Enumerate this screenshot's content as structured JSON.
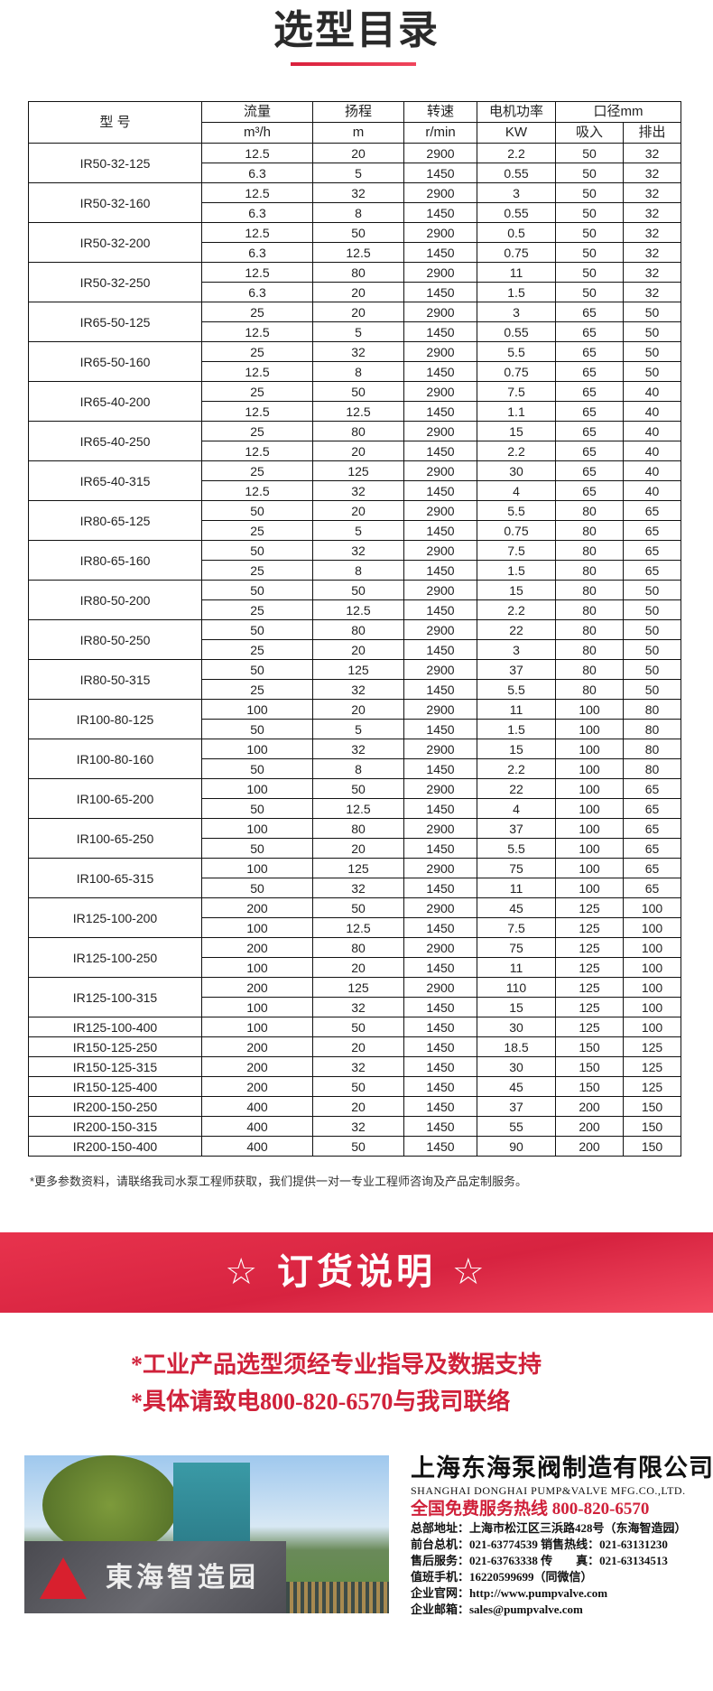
{
  "page": {
    "title": "选型目录",
    "accent_color": "#d9203c"
  },
  "table": {
    "header_model": "型 号",
    "headers_top": [
      "流量",
      "扬程",
      "转速",
      "电机功率",
      "口径mm"
    ],
    "headers_units": [
      "m³/h",
      "m",
      "r/min",
      "KW",
      "吸入",
      "排出"
    ],
    "models": [
      {
        "model": "IR50-32-125",
        "rows": [
          [
            "12.5",
            "20",
            "2900",
            "2.2",
            "50",
            "32"
          ],
          [
            "6.3",
            "5",
            "1450",
            "0.55",
            "50",
            "32"
          ]
        ]
      },
      {
        "model": "IR50-32-160",
        "rows": [
          [
            "12.5",
            "32",
            "2900",
            "3",
            "50",
            "32"
          ],
          [
            "6.3",
            "8",
            "1450",
            "0.55",
            "50",
            "32"
          ]
        ]
      },
      {
        "model": "IR50-32-200",
        "rows": [
          [
            "12.5",
            "50",
            "2900",
            "0.5",
            "50",
            "32"
          ],
          [
            "6.3",
            "12.5",
            "1450",
            "0.75",
            "50",
            "32"
          ]
        ]
      },
      {
        "model": "IR50-32-250",
        "rows": [
          [
            "12.5",
            "80",
            "2900",
            "11",
            "50",
            "32"
          ],
          [
            "6.3",
            "20",
            "1450",
            "1.5",
            "50",
            "32"
          ]
        ]
      },
      {
        "model": "IR65-50-125",
        "rows": [
          [
            "25",
            "20",
            "2900",
            "3",
            "65",
            "50"
          ],
          [
            "12.5",
            "5",
            "1450",
            "0.55",
            "65",
            "50"
          ]
        ]
      },
      {
        "model": "IR65-50-160",
        "rows": [
          [
            "25",
            "32",
            "2900",
            "5.5",
            "65",
            "50"
          ],
          [
            "12.5",
            "8",
            "1450",
            "0.75",
            "65",
            "50"
          ]
        ]
      },
      {
        "model": "IR65-40-200",
        "rows": [
          [
            "25",
            "50",
            "2900",
            "7.5",
            "65",
            "40"
          ],
          [
            "12.5",
            "12.5",
            "1450",
            "1.1",
            "65",
            "40"
          ]
        ]
      },
      {
        "model": "IR65-40-250",
        "rows": [
          [
            "25",
            "80",
            "2900",
            "15",
            "65",
            "40"
          ],
          [
            "12.5",
            "20",
            "1450",
            "2.2",
            "65",
            "40"
          ]
        ]
      },
      {
        "model": "IR65-40-315",
        "rows": [
          [
            "25",
            "125",
            "2900",
            "30",
            "65",
            "40"
          ],
          [
            "12.5",
            "32",
            "1450",
            "4",
            "65",
            "40"
          ]
        ]
      },
      {
        "model": "IR80-65-125",
        "rows": [
          [
            "50",
            "20",
            "2900",
            "5.5",
            "80",
            "65"
          ],
          [
            "25",
            "5",
            "1450",
            "0.75",
            "80",
            "65"
          ]
        ]
      },
      {
        "model": "IR80-65-160",
        "rows": [
          [
            "50",
            "32",
            "2900",
            "7.5",
            "80",
            "65"
          ],
          [
            "25",
            "8",
            "1450",
            "1.5",
            "80",
            "65"
          ]
        ]
      },
      {
        "model": "IR80-50-200",
        "rows": [
          [
            "50",
            "50",
            "2900",
            "15",
            "80",
            "50"
          ],
          [
            "25",
            "12.5",
            "1450",
            "2.2",
            "80",
            "50"
          ]
        ]
      },
      {
        "model": "IR80-50-250",
        "rows": [
          [
            "50",
            "80",
            "2900",
            "22",
            "80",
            "50"
          ],
          [
            "25",
            "20",
            "1450",
            "3",
            "80",
            "50"
          ]
        ]
      },
      {
        "model": "IR80-50-315",
        "rows": [
          [
            "50",
            "125",
            "2900",
            "37",
            "80",
            "50"
          ],
          [
            "25",
            "32",
            "1450",
            "5.5",
            "80",
            "50"
          ]
        ]
      },
      {
        "model": "IR100-80-125",
        "rows": [
          [
            "100",
            "20",
            "2900",
            "11",
            "100",
            "80"
          ],
          [
            "50",
            "5",
            "1450",
            "1.5",
            "100",
            "80"
          ]
        ]
      },
      {
        "model": "IR100-80-160",
        "rows": [
          [
            "100",
            "32",
            "2900",
            "15",
            "100",
            "80"
          ],
          [
            "50",
            "8",
            "1450",
            "2.2",
            "100",
            "80"
          ]
        ]
      },
      {
        "model": "IR100-65-200",
        "rows": [
          [
            "100",
            "50",
            "2900",
            "22",
            "100",
            "65"
          ],
          [
            "50",
            "12.5",
            "1450",
            "4",
            "100",
            "65"
          ]
        ]
      },
      {
        "model": "IR100-65-250",
        "rows": [
          [
            "100",
            "80",
            "2900",
            "37",
            "100",
            "65"
          ],
          [
            "50",
            "20",
            "1450",
            "5.5",
            "100",
            "65"
          ]
        ]
      },
      {
        "model": "IR100-65-315",
        "rows": [
          [
            "100",
            "125",
            "2900",
            "75",
            "100",
            "65"
          ],
          [
            "50",
            "32",
            "1450",
            "11",
            "100",
            "65"
          ]
        ]
      },
      {
        "model": "IR125-100-200",
        "rows": [
          [
            "200",
            "50",
            "2900",
            "45",
            "125",
            "100"
          ],
          [
            "100",
            "12.5",
            "1450",
            "7.5",
            "125",
            "100"
          ]
        ]
      },
      {
        "model": "IR125-100-250",
        "rows": [
          [
            "200",
            "80",
            "2900",
            "75",
            "125",
            "100"
          ],
          [
            "100",
            "20",
            "1450",
            "11",
            "125",
            "100"
          ]
        ]
      },
      {
        "model": "IR125-100-315",
        "rows": [
          [
            "200",
            "125",
            "2900",
            "110",
            "125",
            "100"
          ],
          [
            "100",
            "32",
            "1450",
            "15",
            "125",
            "100"
          ]
        ]
      },
      {
        "model": "IR125-100-400",
        "rows": [
          [
            "100",
            "50",
            "1450",
            "30",
            "125",
            "100"
          ]
        ]
      },
      {
        "model": "IR150-125-250",
        "rows": [
          [
            "200",
            "20",
            "1450",
            "18.5",
            "150",
            "125"
          ]
        ]
      },
      {
        "model": "IR150-125-315",
        "rows": [
          [
            "200",
            "32",
            "1450",
            "30",
            "150",
            "125"
          ]
        ]
      },
      {
        "model": "IR150-125-400",
        "rows": [
          [
            "200",
            "50",
            "1450",
            "45",
            "150",
            "125"
          ]
        ]
      },
      {
        "model": "IR200-150-250",
        "rows": [
          [
            "400",
            "20",
            "1450",
            "37",
            "200",
            "150"
          ]
        ]
      },
      {
        "model": "IR200-150-315",
        "rows": [
          [
            "400",
            "32",
            "1450",
            "55",
            "200",
            "150"
          ]
        ]
      },
      {
        "model": "IR200-150-400",
        "rows": [
          [
            "400",
            "50",
            "1450",
            "90",
            "200",
            "150"
          ]
        ]
      }
    ]
  },
  "note": "*更多参数资料，请联络我司水泵工程师获取，我们提供一对一专业工程师咨询及产品定制服务。",
  "order_banner": {
    "title": "☆ 订货说明 ☆",
    "lines": [
      "*工业产品选型须经专业指导及数据支持",
      "*具体请致电800-820-6570与我司联络"
    ]
  },
  "company": {
    "photo_logo_text": "東海智造园",
    "photo_logo_mark": "东",
    "name_cn": "上海东海泵阀制造有限公司",
    "name_en": "SHANGHAI DONGHAI PUMP&VALVE MFG.CO.,LTD.",
    "hotline": "全国免费服务热线  800-820-6570",
    "info_lines": [
      "总部地址：上海市松江区三浜路428号（东海智造园）",
      "前台总机：021-63774539   销售热线：021-63131230",
      "售后服务：021-63763338   传　　真：021-63134513",
      "值班手机：16220599699（同微信）",
      "企业官网：http://www.pumpvalve.com",
      "企业邮箱：sales@pumpvalve.com"
    ]
  }
}
